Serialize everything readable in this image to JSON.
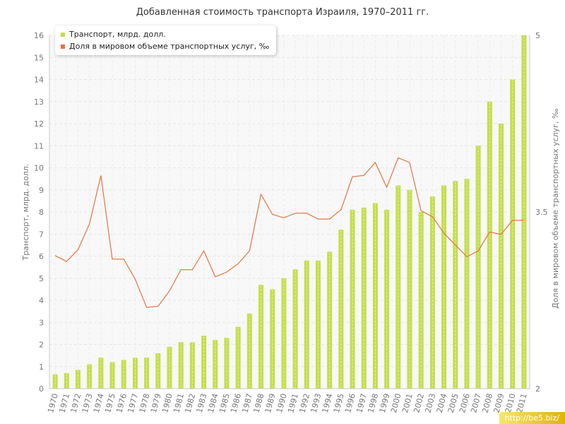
{
  "chart_data": {
    "type": "bar+line",
    "title": "Добавленная стоимость транспорта Израиля, 1970–2011 гг.",
    "categories": [
      "1970",
      "1971",
      "1972",
      "1973",
      "1974",
      "1975",
      "1976",
      "1977",
      "1978",
      "1979",
      "1980",
      "1981",
      "1982",
      "1983",
      "1984",
      "1985",
      "1986",
      "1987",
      "1988",
      "1989",
      "1990",
      "1991",
      "1992",
      "1993",
      "1994",
      "1995",
      "1996",
      "1997",
      "1998",
      "1999",
      "2000",
      "2001",
      "2002",
      "2003",
      "2004",
      "2005",
      "2006",
      "2007",
      "2008",
      "2009",
      "2010",
      "2011"
    ],
    "series": [
      {
        "name": "Транспорт, млрд. долл.",
        "type": "bar",
        "axis": "left",
        "color": "#c4de4c",
        "values": [
          0.65,
          0.7,
          0.85,
          1.1,
          1.4,
          1.2,
          1.3,
          1.4,
          1.4,
          1.6,
          1.9,
          2.1,
          2.1,
          2.4,
          2.2,
          2.3,
          2.8,
          3.4,
          4.7,
          4.5,
          5.0,
          5.4,
          5.8,
          5.8,
          6.2,
          7.2,
          8.1,
          8.2,
          8.4,
          8.1,
          9.2,
          9.0,
          8.0,
          8.7,
          9.2,
          9.4,
          9.5,
          11.0,
          13.0,
          12.0,
          14.0,
          16.0
        ]
      },
      {
        "name": "Доля в мировом объеме транспортных услуг, ‰",
        "type": "line",
        "axis": "right",
        "color": "#e4723c",
        "values": [
          3.13,
          3.08,
          3.18,
          3.4,
          3.81,
          3.1,
          3.1,
          2.93,
          2.69,
          2.7,
          2.83,
          3.01,
          3.01,
          3.17,
          2.95,
          2.99,
          3.06,
          3.17,
          3.65,
          3.48,
          3.45,
          3.49,
          3.49,
          3.44,
          3.44,
          3.52,
          3.8,
          3.81,
          3.92,
          3.71,
          3.96,
          3.92,
          3.51,
          3.46,
          3.32,
          3.22,
          3.12,
          3.17,
          3.33,
          3.31,
          3.43,
          3.43
        ]
      }
    ],
    "y_left": {
      "label": "Транспорт, млрд. долл.",
      "min": 0,
      "max": 16,
      "ticks": [
        0,
        1,
        2,
        3,
        4,
        5,
        6,
        7,
        8,
        9,
        10,
        11,
        12,
        13,
        14,
        15,
        16
      ]
    },
    "y_right": {
      "label": "Доля в мировом объеме транспортных услуг, ‰",
      "min": 2,
      "max": 5,
      "ticks": [
        2,
        3.5,
        5
      ]
    },
    "grid": true,
    "legend_position": "top-left"
  },
  "watermark": "http://be5.biz/"
}
